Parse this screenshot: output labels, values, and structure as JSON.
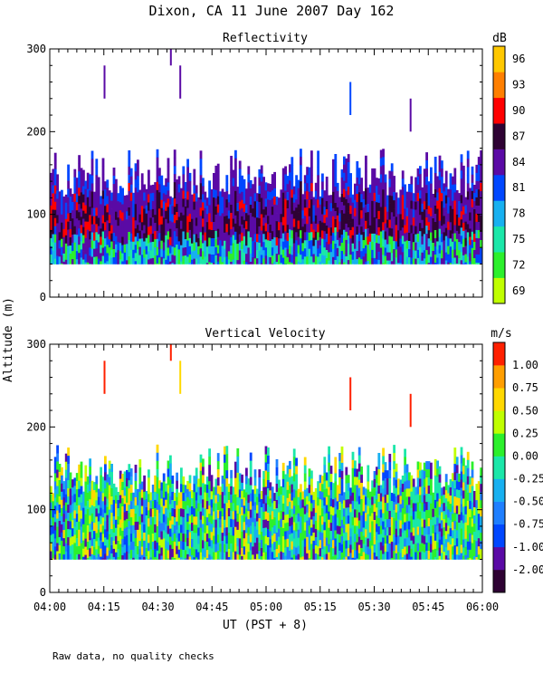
{
  "page": {
    "title": "Dixon, CA 11 June 2007  Day 162",
    "ylabel": "Altitude (m)",
    "xlabel": "UT  (PST + 8)",
    "footnote": "Raw data, no quality checks"
  },
  "chart_data": [
    {
      "type": "heatmap",
      "id": "reflectivity",
      "title": "Reflectivity",
      "colorbar_unit": "dB",
      "x_range_minutes": [
        0,
        120
      ],
      "x_ticks": [
        {
          "minute": 0,
          "label": "04:00"
        },
        {
          "minute": 15,
          "label": "04:15"
        },
        {
          "minute": 30,
          "label": "04:30"
        },
        {
          "minute": 45,
          "label": "04:45"
        },
        {
          "minute": 60,
          "label": "05:00"
        },
        {
          "minute": 75,
          "label": "05:15"
        },
        {
          "minute": 90,
          "label": "05:30"
        },
        {
          "minute": 105,
          "label": "05:45"
        },
        {
          "minute": 120,
          "label": "06:00"
        }
      ],
      "ylim": [
        0,
        300
      ],
      "y_ticks": [
        0,
        100,
        200,
        300
      ],
      "data_bottom_m": 40,
      "typical_top_m": 160,
      "max_top_m": 180,
      "colorbar": {
        "colors": [
          "#c0ff00",
          "#2cf02c",
          "#1be7a9",
          "#17b0f0",
          "#0047ff",
          "#5a0aa5",
          "#2e0233",
          "#ff0000",
          "#ff7f00",
          "#ffc800"
        ],
        "labels": [
          "69",
          "72",
          "75",
          "78",
          "81",
          "84",
          "87",
          "90",
          "93",
          "96"
        ]
      },
      "isolated_echoes": [
        {
          "minute": 15.2,
          "bottom_m": 240,
          "top_m": 280,
          "color": "#5a0aa5"
        },
        {
          "minute": 33.6,
          "bottom_m": 280,
          "top_m": 300,
          "color": "#5a0aa5"
        },
        {
          "minute": 36.2,
          "bottom_m": 240,
          "top_m": 280,
          "color": "#5a0aa5"
        },
        {
          "minute": 83.4,
          "bottom_m": 220,
          "top_m": 260,
          "color": "#0047ff"
        },
        {
          "minute": 100.1,
          "bottom_m": 200,
          "top_m": 240,
          "color": "#5a0aa5"
        }
      ]
    },
    {
      "type": "heatmap",
      "id": "vertical_velocity",
      "title": "Vertical Velocity",
      "colorbar_unit": "m/s",
      "x_range_minutes": [
        0,
        120
      ],
      "x_ticks": [
        {
          "minute": 0,
          "label": "04:00"
        },
        {
          "minute": 15,
          "label": "04:15"
        },
        {
          "minute": 30,
          "label": "04:30"
        },
        {
          "minute": 45,
          "label": "04:45"
        },
        {
          "minute": 60,
          "label": "05:00"
        },
        {
          "minute": 75,
          "label": "05:15"
        },
        {
          "minute": 90,
          "label": "05:30"
        },
        {
          "minute": 105,
          "label": "05:45"
        },
        {
          "minute": 120,
          "label": "06:00"
        }
      ],
      "ylim": [
        0,
        300
      ],
      "y_ticks": [
        0,
        100,
        200,
        300
      ],
      "data_bottom_m": 40,
      "typical_top_m": 160,
      "max_top_m": 180,
      "colorbar": {
        "colors": [
          "#2e0233",
          "#5a0aa5",
          "#0047ff",
          "#1f7fff",
          "#17b0f0",
          "#1be7a9",
          "#2cf02c",
          "#c0ff00",
          "#ffd800",
          "#ff9e00",
          "#ff2000"
        ],
        "labels": [
          "-2.00",
          "-1.00",
          "-0.75",
          "-0.50",
          "-0.25",
          "0.00",
          "0.25",
          "0.50",
          "0.75",
          "1.00"
        ]
      },
      "isolated_echoes": [
        {
          "minute": 15.2,
          "bottom_m": 240,
          "top_m": 280,
          "color": "#ff2000"
        },
        {
          "minute": 33.6,
          "bottom_m": 280,
          "top_m": 300,
          "color": "#ff2000"
        },
        {
          "minute": 36.2,
          "bottom_m": 240,
          "top_m": 280,
          "color": "#ffd800"
        },
        {
          "minute": 83.4,
          "bottom_m": 220,
          "top_m": 260,
          "color": "#ff2000"
        },
        {
          "minute": 100.1,
          "bottom_m": 200,
          "top_m": 240,
          "color": "#ff2000"
        }
      ]
    }
  ]
}
